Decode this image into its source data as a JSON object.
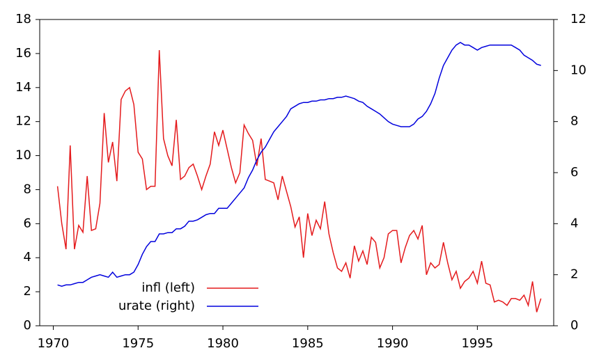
{
  "chart_data": {
    "type": "line",
    "x": [
      1970.25,
      1970.5,
      1970.75,
      1971,
      1971.25,
      1971.5,
      1971.75,
      1972,
      1972.25,
      1972.5,
      1972.75,
      1973,
      1973.25,
      1973.5,
      1973.75,
      1974,
      1974.25,
      1974.5,
      1974.75,
      1975,
      1975.25,
      1975.5,
      1975.75,
      1976,
      1976.25,
      1976.5,
      1976.75,
      1977,
      1977.25,
      1977.5,
      1977.75,
      1978,
      1978.25,
      1978.5,
      1978.75,
      1979,
      1979.25,
      1979.5,
      1979.75,
      1980,
      1980.25,
      1980.5,
      1980.75,
      1981,
      1981.25,
      1981.5,
      1981.75,
      1982,
      1982.25,
      1982.5,
      1982.75,
      1983,
      1983.25,
      1983.5,
      1983.75,
      1984,
      1984.25,
      1984.5,
      1984.75,
      1985,
      1985.25,
      1985.5,
      1985.75,
      1986,
      1986.25,
      1986.5,
      1986.75,
      1987,
      1987.25,
      1987.5,
      1987.75,
      1988,
      1988.25,
      1988.5,
      1988.75,
      1989,
      1989.25,
      1989.5,
      1989.75,
      1990,
      1990.25,
      1990.5,
      1990.75,
      1991,
      1991.25,
      1991.5,
      1991.75,
      1992,
      1992.25,
      1992.5,
      1992.75,
      1993,
      1993.25,
      1993.5,
      1993.75,
      1994,
      1994.25,
      1994.5,
      1994.75,
      1995,
      1995.25,
      1995.5,
      1995.75,
      1996,
      1996.25,
      1996.5,
      1996.75,
      1997,
      1997.25,
      1997.5,
      1997.75,
      1998,
      1998.25,
      1998.5,
      1998.75
    ],
    "series": [
      {
        "name": "infl (left)",
        "color": "#e41a1c",
        "axis": "y",
        "values": [
          8.2,
          6.0,
          4.5,
          10.6,
          4.5,
          5.9,
          5.5,
          8.8,
          5.6,
          5.7,
          7.2,
          12.5,
          9.6,
          10.8,
          8.5,
          13.3,
          13.8,
          14.0,
          13.0,
          10.2,
          9.8,
          8.0,
          8.2,
          8.2,
          16.2,
          11.0,
          10.0,
          9.4,
          12.1,
          8.6,
          8.8,
          9.3,
          9.5,
          8.8,
          8.0,
          8.8,
          9.5,
          11.4,
          10.6,
          11.5,
          10.4,
          9.3,
          8.4,
          9.0,
          11.8,
          11.3,
          10.9,
          9.4,
          11.0,
          8.6,
          8.5,
          8.4,
          7.4,
          8.8,
          7.9,
          7.0,
          5.8,
          6.4,
          4.0,
          6.6,
          5.3,
          6.2,
          5.7,
          7.3,
          5.4,
          4.3,
          3.4,
          3.2,
          3.7,
          2.8,
          4.7,
          3.8,
          4.4,
          3.6,
          5.2,
          4.9,
          3.4,
          4.0,
          5.4,
          5.6,
          5.6,
          3.7,
          4.6,
          5.3,
          5.6,
          5.1,
          5.9,
          3.0,
          3.7,
          3.4,
          3.6,
          4.9,
          3.7,
          2.7,
          3.2,
          2.2,
          2.6,
          2.8,
          3.2,
          2.5,
          3.8,
          2.5,
          2.4,
          1.4,
          1.5,
          1.4,
          1.2,
          1.6,
          1.6,
          1.5,
          1.8,
          1.2,
          2.6,
          0.8,
          1.6
        ]
      },
      {
        "name": "urate (right)",
        "color": "#0000dd",
        "axis": "y2",
        "values": [
          1.6,
          1.55,
          1.6,
          1.6,
          1.65,
          1.7,
          1.7,
          1.8,
          1.9,
          1.95,
          2.0,
          1.95,
          1.9,
          2.1,
          1.9,
          1.95,
          2.0,
          2.0,
          2.1,
          2.4,
          2.8,
          3.1,
          3.3,
          3.3,
          3.6,
          3.6,
          3.65,
          3.65,
          3.8,
          3.8,
          3.9,
          4.1,
          4.1,
          4.15,
          4.25,
          4.35,
          4.4,
          4.4,
          4.6,
          4.6,
          4.6,
          4.8,
          5.0,
          5.2,
          5.4,
          5.8,
          6.1,
          6.5,
          6.8,
          7.0,
          7.3,
          7.6,
          7.8,
          8.0,
          8.2,
          8.5,
          8.6,
          8.7,
          8.75,
          8.75,
          8.8,
          8.8,
          8.85,
          8.85,
          8.9,
          8.9,
          8.95,
          8.95,
          9.0,
          8.95,
          8.9,
          8.8,
          8.75,
          8.6,
          8.5,
          8.4,
          8.3,
          8.15,
          8.0,
          7.9,
          7.85,
          7.8,
          7.8,
          7.8,
          7.9,
          8.1,
          8.2,
          8.4,
          8.7,
          9.1,
          9.7,
          10.2,
          10.5,
          10.8,
          11.0,
          11.1,
          11.0,
          11.0,
          10.9,
          10.8,
          10.9,
          10.95,
          11.0,
          11.0,
          11.0,
          11.0,
          11.0,
          11.0,
          10.9,
          10.8,
          10.6,
          10.5,
          10.4,
          10.25,
          10.2
        ]
      }
    ],
    "xlim": [
      1969.2,
      1999.5
    ],
    "xticks": [
      1970,
      1975,
      1980,
      1985,
      1990,
      1995
    ],
    "ylim": [
      0,
      18
    ],
    "yticks": [
      0,
      2,
      4,
      6,
      8,
      10,
      12,
      14,
      16,
      18
    ],
    "y2lim": [
      0,
      12
    ],
    "y2ticks": [
      0,
      2,
      4,
      6,
      8,
      10,
      12
    ],
    "grid": false,
    "legend": "lower left"
  }
}
